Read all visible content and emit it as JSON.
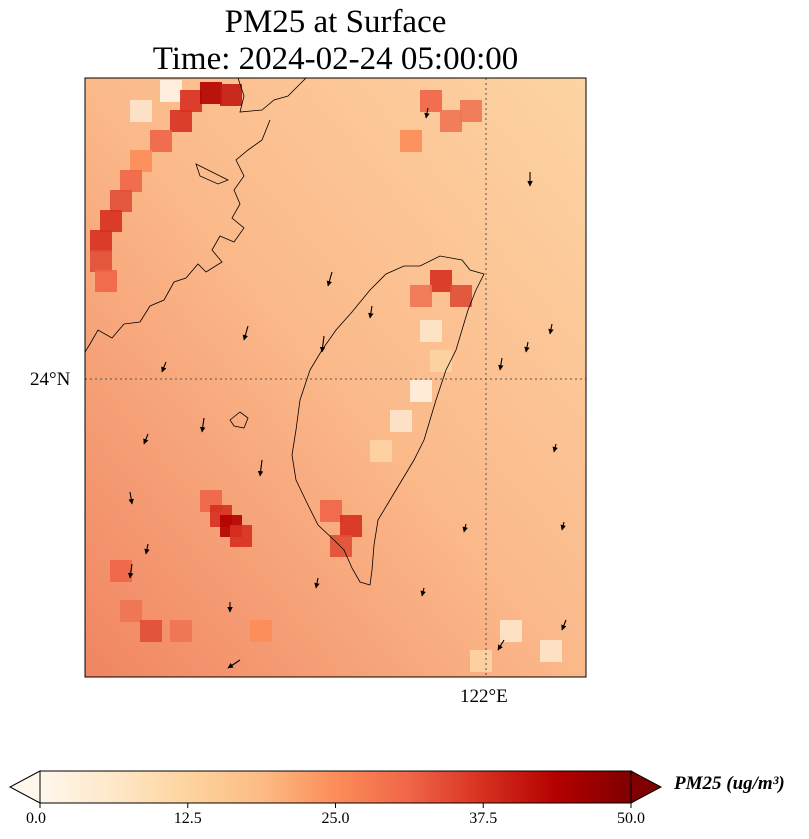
{
  "title": {
    "line1": "PM25 at Surface",
    "line2": "Time: 2024-02-24 05:00:00"
  },
  "axes": {
    "lat_tick": "24°N",
    "lon_tick": "122°E"
  },
  "colorbar": {
    "label": "PM25 (ug/m³)",
    "ticks": [
      "0.0",
      "12.5",
      "25.0",
      "37.5",
      "50.0"
    ],
    "range": [
      0,
      50
    ],
    "extend": "both",
    "colormap": "OrRd",
    "colors": [
      "#fff7ec",
      "#fee8c8",
      "#fdd49e",
      "#fdbb84",
      "#fc8d59",
      "#ef6548",
      "#d7301f",
      "#b30000",
      "#7f0000"
    ]
  },
  "map": {
    "region": "Taiwan Strait",
    "field": "PM25 surface concentration",
    "gridlines": "dotted",
    "wind_vectors": true
  }
}
